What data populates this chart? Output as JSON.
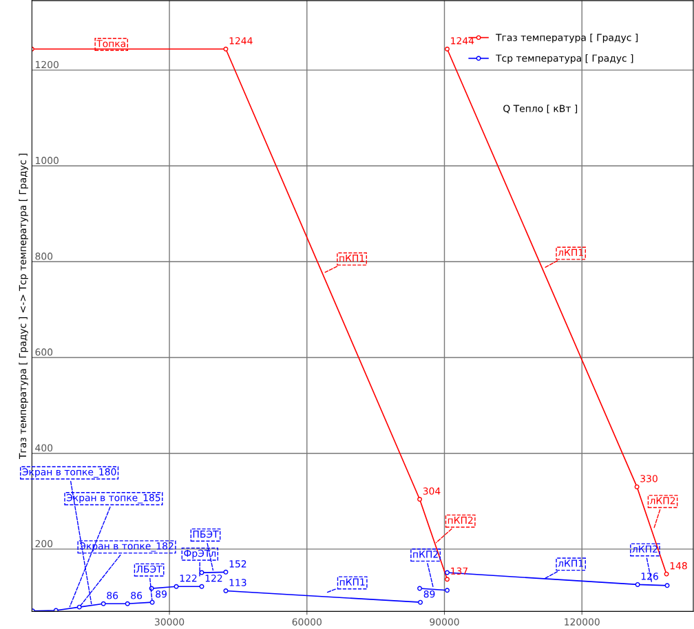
{
  "chart_data": {
    "type": "line",
    "ylabel": "Tгаз температура [ Градус ] <-> Tср температура [ Градус ]",
    "xlim": [
      0,
      144300
    ],
    "xticks": [
      30000,
      60000,
      90000,
      120000
    ],
    "ylim": [
      70,
      1345
    ],
    "yticks": [
      200,
      400,
      600,
      800,
      1000,
      1200
    ],
    "grid": true,
    "legend": "top right",
    "marker": "circle",
    "line_style": "solid",
    "series": [
      {
        "name": "Tгаз температура [ Градус ]",
        "color": "#ff0000",
        "x": [
          0,
          42300,
          84600,
          90600,
          null,
          90600,
          132000,
          138450
        ],
        "values": [
          1244,
          1244,
          304,
          137,
          null,
          1244,
          330,
          148
        ],
        "value_labels": [
          null,
          "1244",
          "304",
          "137",
          null,
          "1244",
          "330",
          "148"
        ]
      },
      {
        "name": "Tср температура [ Градус ]",
        "color": "#0000ff",
        "x": [
          150,
          5250,
          10350,
          15600,
          20850,
          26250,
          null,
          26100,
          31500,
          37050,
          null,
          37050,
          42300,
          null,
          42300,
          84750,
          null,
          84600,
          90600,
          null,
          90600,
          132150,
          138600
        ],
        "values": [
          71,
          72,
          79,
          86,
          86,
          89,
          null,
          118,
          122,
          122,
          null,
          151,
          152,
          null,
          113,
          89,
          null,
          118,
          114,
          null,
          151,
          126,
          124
        ],
        "value_labels": [
          null,
          null,
          null,
          "86",
          "86",
          "89",
          null,
          null,
          "122",
          "122",
          null,
          null,
          "152",
          null,
          "113",
          "89",
          null,
          null,
          null,
          null,
          null,
          "126",
          null
        ]
      }
    ],
    "annotations": [
      "Q Тепло [ кВт ]",
      {
        "text": "Топка",
        "x": 14100,
        "y": 1244
      },
      {
        "text": "пКП1",
        "x": 63600,
        "y": 776
      },
      {
        "text": "пКП2",
        "x": 87900,
        "y": 211
      },
      {
        "text": "лКП1",
        "x": 111600,
        "y": 786
      },
      {
        "text": "лКП2",
        "x": 135600,
        "y": 240
      },
      {
        "text": "пКП1",
        "x": 63900,
        "y": 108
      },
      {
        "text": "пКП2",
        "x": 87600,
        "y": 118
      },
      {
        "text": "лКП1",
        "x": 111600,
        "y": 137
      },
      {
        "text": "лКП2",
        "x": 135300,
        "y": 127
      },
      {
        "text": "ЛБЭТ",
        "x": 26250,
        "y": 89
      },
      {
        "text": "ФрЭТл",
        "x": 36600,
        "y": 140
      },
      {
        "text": "ПБЭТ",
        "x": 39600,
        "y": 152
      },
      {
        "text": "Экран в топке_180",
        "x": 13050,
        "y": 82
      },
      {
        "text": "Экран в топке_185",
        "x": 8100,
        "y": 76
      },
      {
        "text": "Экран в топке_182",
        "x": 10350,
        "y": 79
      }
    ]
  }
}
